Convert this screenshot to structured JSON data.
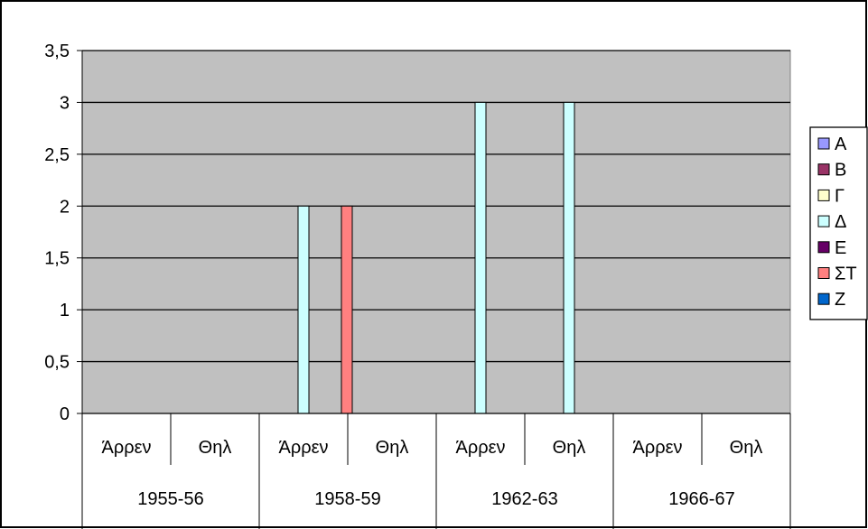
{
  "chart_data": {
    "type": "bar",
    "title": "",
    "xlabel": "",
    "ylabel": "",
    "ylim": [
      0,
      3.5
    ],
    "yticks": [
      "0",
      "0,5",
      "1",
      "1,5",
      "2",
      "2,5",
      "3",
      "3,5"
    ],
    "ytick_values": [
      0,
      0.5,
      1,
      1.5,
      2,
      2.5,
      3,
      3.5
    ],
    "grid": true,
    "legend_position": "right",
    "plot_background": "#c0c0c0",
    "groups": [
      "1955-56",
      "1958-59",
      "1962-63",
      "1966-67"
    ],
    "subcategories": [
      "Άρρεν",
      "Θηλ"
    ],
    "categories": [
      "1955-56 Άρρεν",
      "1955-56 Θηλ",
      "1958-59 Άρρεν",
      "1958-59 Θηλ",
      "1962-63 Άρρεν",
      "1962-63 Θηλ",
      "1966-67 Άρρεν",
      "1966-67 Θηλ"
    ],
    "series": [
      {
        "name": "Α",
        "color": "#9999ff",
        "values": [
          0,
          0,
          0,
          0,
          0,
          0,
          0,
          0
        ]
      },
      {
        "name": "Β",
        "color": "#993366",
        "values": [
          0,
          0,
          0,
          0,
          0,
          0,
          0,
          0
        ]
      },
      {
        "name": "Γ",
        "color": "#ffffcc",
        "values": [
          0,
          0,
          0,
          0,
          0,
          0,
          0,
          0
        ]
      },
      {
        "name": "Δ",
        "color": "#ccffff",
        "values": [
          0,
          0,
          2,
          0,
          3,
          3,
          0,
          0
        ]
      },
      {
        "name": "Ε",
        "color": "#660066",
        "values": [
          0,
          0,
          0,
          0,
          0,
          0,
          0,
          0
        ]
      },
      {
        "name": "ΣΤ",
        "color": "#ff8080",
        "values": [
          0,
          0,
          2,
          0,
          0,
          0,
          0,
          0
        ]
      },
      {
        "name": "Ζ",
        "color": "#0066cc",
        "values": [
          0,
          0,
          0,
          0,
          0,
          0,
          0,
          0
        ]
      }
    ]
  }
}
